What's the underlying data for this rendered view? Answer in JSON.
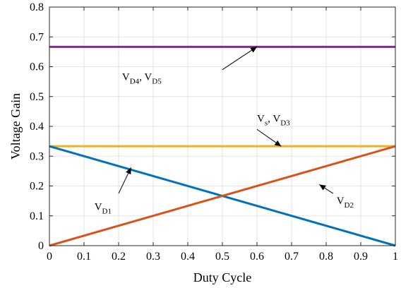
{
  "chart_data": {
    "type": "line",
    "xlabel": "Duty Cycle",
    "ylabel": "Voltage Gain",
    "xlim": [
      0,
      1
    ],
    "ylim": [
      0,
      0.8
    ],
    "xticks": [
      0,
      0.1,
      0.2,
      0.3,
      0.4,
      0.5,
      0.6,
      0.7,
      0.8,
      0.9,
      1
    ],
    "yticks": [
      0,
      0.1,
      0.2,
      0.3,
      0.4,
      0.5,
      0.6,
      0.7,
      0.8
    ],
    "xtick_labels": [
      "0",
      "0.1",
      "0.2",
      "0.3",
      "0.4",
      "0.5",
      "0.6",
      "0.7",
      "0.8",
      "0.9",
      "1"
    ],
    "ytick_labels": [
      "0",
      "0.1",
      "0.2",
      "0.3",
      "0.4",
      "0.5",
      "0.6",
      "0.7",
      "0.8"
    ],
    "grid": true,
    "series": [
      {
        "key": "d4d5",
        "color": "#7E2F8E",
        "x": [
          0,
          1
        ],
        "y": [
          0.6667,
          0.6667
        ]
      },
      {
        "key": "sd3",
        "color": "#EDB120",
        "x": [
          0,
          1
        ],
        "y": [
          0.3333,
          0.3333
        ]
      },
      {
        "key": "d1",
        "color": "#0072BD",
        "x": [
          0,
          1
        ],
        "y": [
          0.3333,
          0
        ]
      },
      {
        "key": "d2",
        "color": "#D95319",
        "x": [
          0,
          1
        ],
        "y": [
          0,
          0.3333
        ]
      }
    ],
    "annotations": [
      {
        "name": "vd4-vd5-label",
        "parts": [
          [
            "V",
            ""
          ],
          [
            "D4",
            "sub"
          ],
          [
            ", V",
            ""
          ],
          [
            "D5",
            "sub"
          ]
        ],
        "text_at": [
          0.21,
          0.555
        ],
        "arrow_from": [
          0.5,
          0.59
        ],
        "arrow_to": [
          0.6,
          0.667
        ]
      },
      {
        "name": "vs-vd3-label",
        "parts": [
          [
            "V",
            ""
          ],
          [
            "s",
            "sub"
          ],
          [
            ", V",
            ""
          ],
          [
            "D3",
            "sub"
          ]
        ],
        "text_at": [
          0.6,
          0.415
        ],
        "arrow_from": [
          0.6,
          0.39
        ],
        "arrow_to": [
          0.67,
          0.333
        ]
      },
      {
        "name": "vd1-label",
        "parts": [
          [
            "V",
            ""
          ],
          [
            "D1",
            "sub"
          ]
        ],
        "text_at": [
          0.13,
          0.12
        ],
        "arrow_from": [
          0.2,
          0.175
        ],
        "arrow_to": [
          0.236,
          0.262
        ]
      },
      {
        "name": "vd2-label",
        "parts": [
          [
            "V",
            ""
          ],
          [
            "D2",
            "sub"
          ]
        ],
        "text_at": [
          0.83,
          0.14
        ],
        "arrow_from": [
          0.82,
          0.175
        ],
        "arrow_to": [
          0.78,
          0.205
        ]
      }
    ]
  }
}
